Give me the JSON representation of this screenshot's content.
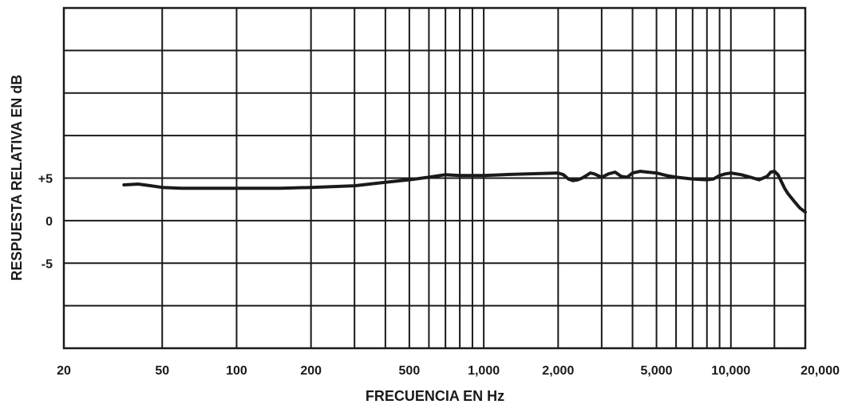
{
  "chart_data": {
    "type": "line",
    "title": "",
    "xlabel": "FRECUENCIA EN Hz",
    "ylabel": "RESPUESTA RELATIVA EN dB",
    "x_scale": "log",
    "xlim": [
      20,
      20000
    ],
    "ylim": [
      -15,
      25
    ],
    "grid": true,
    "x_tick_labels": [
      {
        "value": 20,
        "label": "20"
      },
      {
        "value": 50,
        "label": "50"
      },
      {
        "value": 100,
        "label": "100"
      },
      {
        "value": 200,
        "label": "200"
      },
      {
        "value": 500,
        "label": "500"
      },
      {
        "value": 1000,
        "label": "1,000"
      },
      {
        "value": 2000,
        "label": "2,000"
      },
      {
        "value": 5000,
        "label": "5,000"
      },
      {
        "value": 10000,
        "label": "10,000"
      },
      {
        "value": 20000,
        "label": "20,000"
      }
    ],
    "x_gridlines": [
      20,
      50,
      100,
      200,
      300,
      400,
      500,
      600,
      700,
      800,
      900,
      1000,
      2000,
      3000,
      4000,
      5000,
      6000,
      7000,
      8000,
      9000,
      10000,
      15000,
      20000
    ],
    "y_tick_labels": [
      {
        "value": 5,
        "label": "+5"
      },
      {
        "value": 0,
        "label": "0"
      },
      {
        "value": -5,
        "label": "-5"
      }
    ],
    "y_gridlines": [
      -15,
      -10,
      -5,
      0,
      5,
      10,
      15,
      20,
      25
    ],
    "series": [
      {
        "x": [
          35,
          40,
          45,
          50,
          60,
          70,
          80,
          100,
          150,
          200,
          300,
          400,
          500,
          600,
          700,
          800,
          1000,
          1200,
          1500,
          2000,
          2100,
          2200,
          2300,
          2400,
          2500,
          2600,
          2700,
          2800,
          3000,
          3200,
          3400,
          3600,
          3800,
          4000,
          4300,
          4600,
          5000,
          5500,
          6000,
          7000,
          8000,
          8500,
          9000,
          9500,
          10000,
          11000,
          12000,
          13000,
          14000,
          14500,
          15000,
          15500,
          16000,
          16500,
          17000,
          18000,
          19000,
          20000
        ],
        "y": [
          4.2,
          4.3,
          4.1,
          3.9,
          3.8,
          3.8,
          3.8,
          3.8,
          3.8,
          3.9,
          4.1,
          4.5,
          4.8,
          5.1,
          5.4,
          5.3,
          5.3,
          5.4,
          5.5,
          5.6,
          5.4,
          4.9,
          4.7,
          4.8,
          5.0,
          5.3,
          5.6,
          5.5,
          5.1,
          5.5,
          5.7,
          5.2,
          5.1,
          5.6,
          5.8,
          5.7,
          5.6,
          5.3,
          5.1,
          4.9,
          4.8,
          4.9,
          5.3,
          5.5,
          5.6,
          5.4,
          5.1,
          4.8,
          5.2,
          5.7,
          5.8,
          5.4,
          4.6,
          3.8,
          3.2,
          2.3,
          1.5,
          1.0
        ]
      }
    ]
  }
}
